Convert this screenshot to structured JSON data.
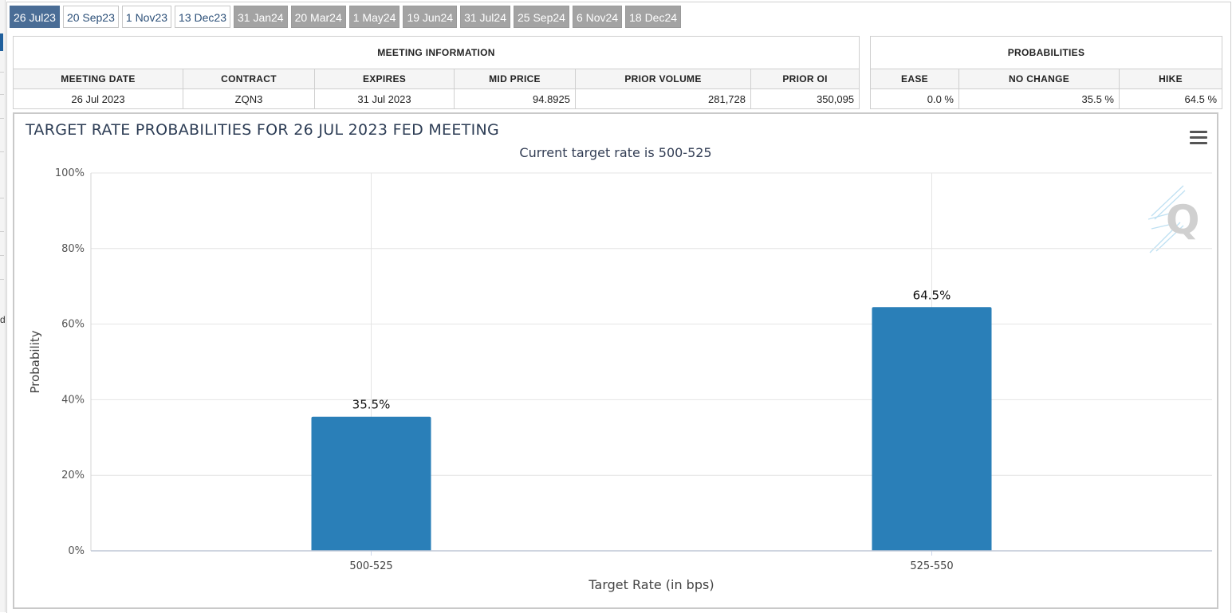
{
  "left_edge_char": "d",
  "tabs": [
    {
      "label": "26 Jul23",
      "state": "active"
    },
    {
      "label": "20 Sep23",
      "state": "light"
    },
    {
      "label": "1 Nov23",
      "state": "light"
    },
    {
      "label": "13 Dec23",
      "state": "light"
    },
    {
      "label": "31 Jan24",
      "state": "dark"
    },
    {
      "label": "20 Mar24",
      "state": "dark"
    },
    {
      "label": "1 May24",
      "state": "dark"
    },
    {
      "label": "19 Jun24",
      "state": "dark"
    },
    {
      "label": "31 Jul24",
      "state": "dark"
    },
    {
      "label": "25 Sep24",
      "state": "dark"
    },
    {
      "label": "6 Nov24",
      "state": "dark"
    },
    {
      "label": "18 Dec24",
      "state": "dark"
    }
  ],
  "meeting_info": {
    "title": "MEETING INFORMATION",
    "headers": [
      "MEETING DATE",
      "CONTRACT",
      "EXPIRES",
      "MID PRICE",
      "PRIOR VOLUME",
      "PRIOR OI"
    ],
    "values": [
      "26 Jul 2023",
      "ZQN3",
      "31 Jul 2023",
      "94.8925",
      "281,728",
      "350,095"
    ]
  },
  "probabilities": {
    "title": "PROBABILITIES",
    "headers": [
      "EASE",
      "NO CHANGE",
      "HIKE"
    ],
    "values": [
      "0.0 %",
      "35.5 %",
      "64.5 %"
    ]
  },
  "chart": {
    "title": "TARGET RATE PROBABILITIES FOR 26 JUL 2023 FED MEETING",
    "subtitle": "Current target rate is 500-525",
    "menu_icon": "hamburger-menu-icon",
    "watermark": "Q"
  },
  "colors": {
    "bar": "#2a7fb8",
    "active_tab": "#4a6d96",
    "inactive_tab": "#a3a3a3",
    "title_text": "#2d3d55"
  },
  "chart_data": {
    "type": "bar",
    "categories": [
      "500-525",
      "525-550"
    ],
    "values": [
      35.5,
      64.5
    ],
    "data_labels": [
      "35.5%",
      "64.5%"
    ],
    "xlabel": "Target Rate (in bps)",
    "ylabel": "Probability",
    "ylim": [
      0,
      100
    ],
    "yticks": [
      0,
      20,
      40,
      60,
      80,
      100
    ],
    "ytick_labels": [
      "0%",
      "20%",
      "40%",
      "60%",
      "80%",
      "100%"
    ],
    "grid": true,
    "legend": "none"
  }
}
